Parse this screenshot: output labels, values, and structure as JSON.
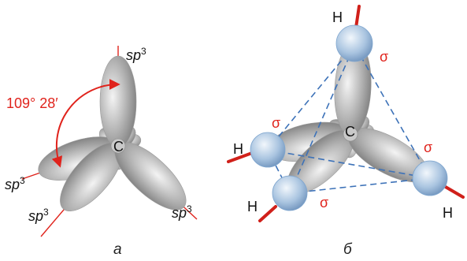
{
  "panels": [
    {
      "caption": "а",
      "center_atom": "C",
      "angle_label": "109° 28′",
      "orbital_labels": [
        {
          "base": "sp",
          "sup": "3"
        },
        {
          "base": "sp",
          "sup": "3"
        },
        {
          "base": "sp",
          "sup": "3"
        },
        {
          "base": "sp",
          "sup": "3"
        }
      ]
    },
    {
      "caption": "б",
      "center_atom": "C",
      "atom_labels": [
        "H",
        "H",
        "H",
        "H"
      ],
      "bond_labels": [
        "σ",
        "σ",
        "σ",
        "σ"
      ]
    }
  ]
}
